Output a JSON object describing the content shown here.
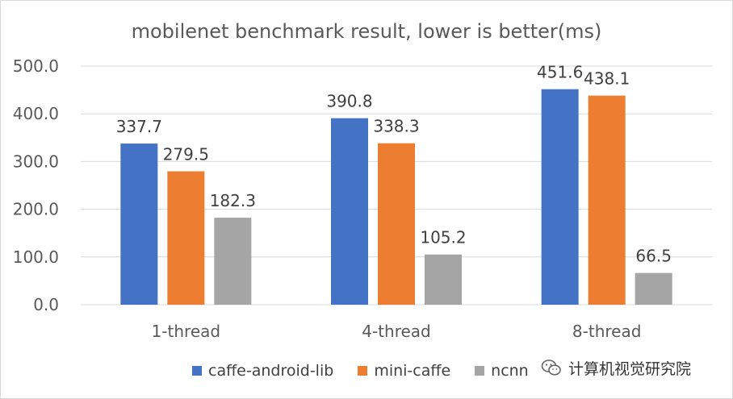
{
  "chart_data": {
    "type": "bar",
    "title": "mobilenet benchmark result, lower is better(ms)",
    "categories": [
      "1-thread",
      "4-thread",
      "8-thread"
    ],
    "series": [
      {
        "name": "caffe-android-lib",
        "color": "#4472c4",
        "values": [
          337.7,
          390.8,
          451.6
        ]
      },
      {
        "name": "mini-caffe",
        "color": "#ed7d31",
        "values": [
          279.5,
          338.3,
          438.1
        ]
      },
      {
        "name": "ncnn",
        "color": "#a5a5a5",
        "values": [
          182.3,
          105.2,
          66.5
        ]
      }
    ],
    "ylim": [
      0,
      500
    ],
    "yticks": [
      "0.0",
      "100.0",
      "200.0",
      "300.0",
      "400.0",
      "500.0"
    ],
    "grid": true,
    "legend_position": "bottom"
  },
  "watermark": {
    "text": "计算机视觉研究院",
    "icon": "wechat-logo-icon"
  }
}
